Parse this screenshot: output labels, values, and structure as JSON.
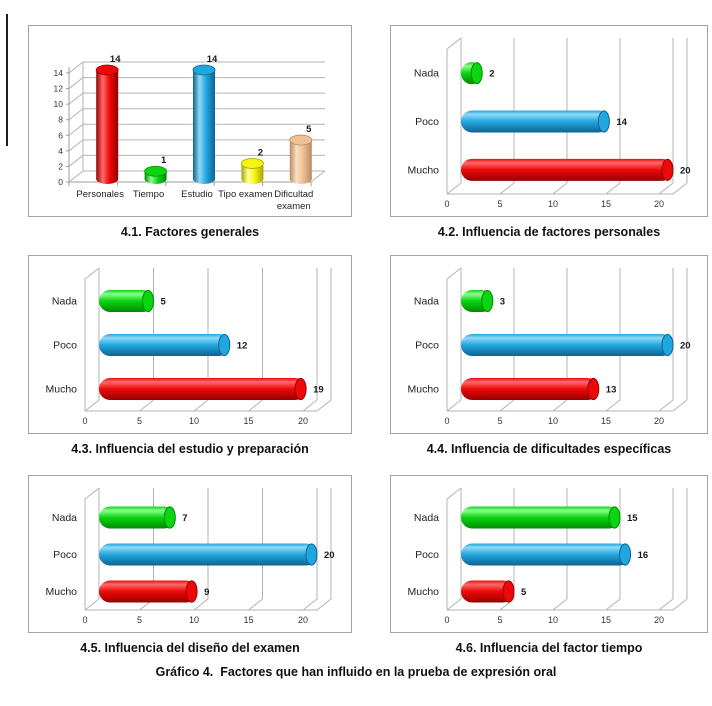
{
  "figure_caption": "Gráfico 4.  Factores que han influido en la prueba de expresión oral",
  "palette": {
    "red": {
      "base": "#ED0909",
      "light": "#FF6A6A",
      "dark": "#960000"
    },
    "green": {
      "base": "#0BD411",
      "light": "#8CFF90",
      "dark": "#008A00"
    },
    "blue": {
      "base": "#22A6E0",
      "light": "#8EDAF5",
      "dark": "#0E6390"
    },
    "yellow": {
      "base": "#F5F510",
      "light": "#FFFF9E",
      "dark": "#A8A400"
    },
    "tan": {
      "base": "#EFC094",
      "light": "#F9E0C6",
      "dark": "#B98A5E"
    }
  },
  "layout_colors": {
    "grid": "#b3b3b3",
    "axis": "#9e9e9e",
    "text": "#1a1a1a",
    "tick_text": "#333333",
    "box_border": "#a3a3a3"
  },
  "chart_data": [
    {
      "id": "41",
      "caption": "4.1. Factores generales",
      "type": "bar",
      "orientation": "vertical",
      "categories": [
        "Personales",
        "Tiempo",
        "Estudio",
        "Tipo examen",
        "Dificultad\nexamen"
      ],
      "values": [
        14,
        1,
        14,
        2,
        5
      ],
      "bar_colors": [
        "red",
        "green",
        "blue",
        "yellow",
        "tan"
      ],
      "ticks": [
        0,
        2,
        4,
        6,
        8,
        10,
        12,
        14
      ],
      "axis_max": 14,
      "grid": true,
      "value_labels": true
    },
    {
      "id": "42",
      "caption": "4.2. Influencia de factores personales",
      "type": "bar",
      "orientation": "horizontal",
      "categories": [
        "Nada",
        "Poco",
        "Mucho"
      ],
      "values": [
        2,
        14,
        20
      ],
      "bar_colors": [
        "green",
        "blue",
        "red"
      ],
      "ticks": [
        0,
        5,
        10,
        15,
        20
      ],
      "axis_max": 20,
      "grid": true,
      "value_labels": true
    },
    {
      "id": "43",
      "caption": "4.3. Influencia del estudio y preparación",
      "type": "bar",
      "orientation": "horizontal",
      "categories": [
        "Nada",
        "Poco",
        "Mucho"
      ],
      "values": [
        5,
        12,
        19
      ],
      "bar_colors": [
        "green",
        "blue",
        "red"
      ],
      "ticks": [
        0,
        5,
        10,
        15,
        20
      ],
      "axis_max": 20,
      "grid": true,
      "value_labels": true
    },
    {
      "id": "44",
      "caption": "4.4. Influencia de dificultades específicas",
      "type": "bar",
      "orientation": "horizontal",
      "categories": [
        "Nada",
        "Poco",
        "Mucho"
      ],
      "values": [
        3,
        20,
        13
      ],
      "bar_colors": [
        "green",
        "blue",
        "red"
      ],
      "ticks": [
        0,
        5,
        10,
        15,
        20
      ],
      "axis_max": 20,
      "grid": true,
      "value_labels": true
    },
    {
      "id": "45",
      "caption": "4.5. Influencia del diseño del examen",
      "type": "bar",
      "orientation": "horizontal",
      "categories": [
        "Nada",
        "Poco",
        "Mucho"
      ],
      "values": [
        7,
        20,
        9
      ],
      "bar_colors": [
        "green",
        "blue",
        "red"
      ],
      "ticks": [
        0,
        5,
        10,
        15,
        20
      ],
      "axis_max": 20,
      "grid": true,
      "value_labels": true
    },
    {
      "id": "46",
      "caption": "4.6. Influencia del factor tiempo",
      "type": "bar",
      "orientation": "horizontal",
      "categories": [
        "Nada",
        "Poco",
        "Mucho"
      ],
      "values": [
        15,
        16,
        5
      ],
      "bar_colors": [
        "green",
        "blue",
        "red"
      ],
      "ticks": [
        0,
        5,
        10,
        15,
        20
      ],
      "axis_max": 20,
      "grid": true,
      "value_labels": true
    }
  ]
}
